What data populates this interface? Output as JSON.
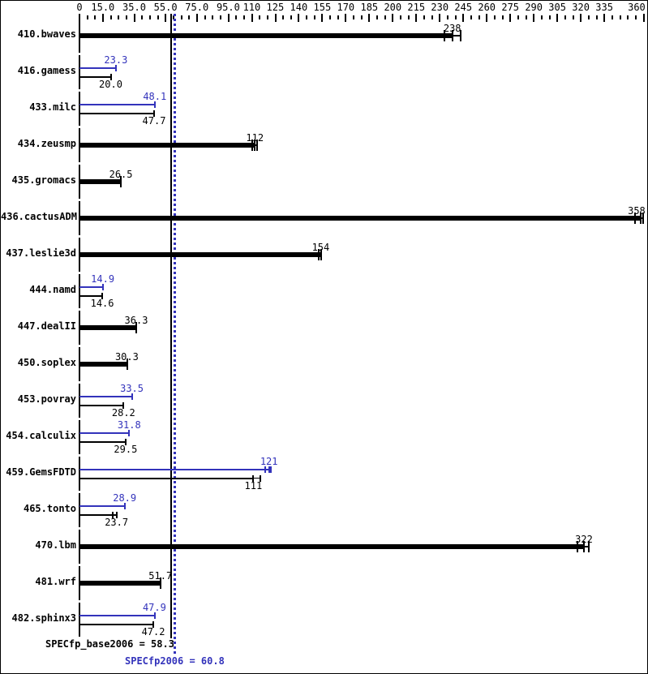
{
  "chart_data": {
    "type": "bar",
    "orientation": "horizontal",
    "axis": {
      "position": "top",
      "min": 0,
      "max": 361,
      "minor_tick_step": 5,
      "major_ticks": [
        {
          "value": 0,
          "label": "0"
        },
        {
          "value": 15,
          "label": "15.0"
        },
        {
          "value": 35,
          "label": "35.0"
        },
        {
          "value": 55,
          "label": "55.0"
        },
        {
          "value": 75,
          "label": "75.0"
        },
        {
          "value": 95,
          "label": "95.0"
        },
        {
          "value": 110,
          "label": "110"
        },
        {
          "value": 125,
          "label": "125"
        },
        {
          "value": 140,
          "label": "140"
        },
        {
          "value": 155,
          "label": "155"
        },
        {
          "value": 170,
          "label": "170"
        },
        {
          "value": 185,
          "label": "185"
        },
        {
          "value": 200,
          "label": "200"
        },
        {
          "value": 215,
          "label": "215"
        },
        {
          "value": 230,
          "label": "230"
        },
        {
          "value": 245,
          "label": "245"
        },
        {
          "value": 260,
          "label": "260"
        },
        {
          "value": 275,
          "label": "275"
        },
        {
          "value": 290,
          "label": "290"
        },
        {
          "value": 305,
          "label": "305"
        },
        {
          "value": 320,
          "label": "320"
        },
        {
          "value": 335,
          "label": "335"
        },
        {
          "value": 360,
          "label": "360"
        }
      ]
    },
    "colors": {
      "base": "#000000",
      "peak": "#3333bb"
    },
    "benchmarks": [
      {
        "name": "410.bwaves",
        "base": {
          "value": 238,
          "label": "238",
          "runs": [
            233,
            238,
            243.5
          ]
        }
      },
      {
        "name": "416.gamess",
        "peak": {
          "value": 23.3,
          "label": "23.3",
          "runs": [
            23.3
          ]
        },
        "base": {
          "value": 20.0,
          "label": "20.0",
          "runs": [
            20.0
          ]
        }
      },
      {
        "name": "433.milc",
        "peak": {
          "value": 48.1,
          "label": "48.1",
          "runs": [
            48.1
          ]
        },
        "base": {
          "value": 47.7,
          "label": "47.7",
          "runs": [
            47.7
          ]
        }
      },
      {
        "name": "434.zeusmp",
        "base": {
          "value": 112,
          "label": "112",
          "runs": [
            110.5,
            112,
            113.5
          ]
        }
      },
      {
        "name": "435.gromacs",
        "base": {
          "value": 26.5,
          "label": "26.5",
          "runs": [
            26.5
          ]
        }
      },
      {
        "name": "436.cactusADM",
        "base": {
          "value": 358,
          "label": "358",
          "runs": [
            354.5,
            358,
            359.5
          ]
        }
      },
      {
        "name": "437.leslie3d",
        "base": {
          "value": 154,
          "label": "154",
          "runs": [
            152.5,
            154
          ]
        }
      },
      {
        "name": "444.namd",
        "peak": {
          "value": 14.9,
          "label": "14.9",
          "runs": [
            14.9
          ]
        },
        "base": {
          "value": 14.6,
          "label": "14.6",
          "runs": [
            14.6
          ]
        }
      },
      {
        "name": "447.dealII",
        "base": {
          "value": 36.3,
          "label": "36.3",
          "runs": [
            36.3
          ]
        }
      },
      {
        "name": "450.soplex",
        "base": {
          "value": 30.3,
          "label": "30.3",
          "runs": [
            30.3
          ]
        }
      },
      {
        "name": "453.povray",
        "peak": {
          "value": 33.5,
          "label": "33.5",
          "runs": [
            33.5
          ]
        },
        "base": {
          "value": 28.2,
          "label": "28.2",
          "runs": [
            28.2
          ]
        }
      },
      {
        "name": "454.calculix",
        "peak": {
          "value": 31.8,
          "label": "31.8",
          "runs": [
            31.8
          ]
        },
        "base": {
          "value": 29.5,
          "label": "29.5",
          "runs": [
            29.5
          ]
        }
      },
      {
        "name": "459.GemsFDTD",
        "peak": {
          "value": 121,
          "label": "121",
          "runs": [
            118.5,
            121,
            122
          ]
        },
        "base": {
          "value": 111,
          "label": "111",
          "runs": [
            111,
            115.5
          ]
        }
      },
      {
        "name": "465.tonto",
        "peak": {
          "value": 28.9,
          "label": "28.9",
          "runs": [
            28.9
          ]
        },
        "base": {
          "value": 23.7,
          "label": "23.7",
          "runs": [
            21.3,
            23.7
          ]
        }
      },
      {
        "name": "470.lbm",
        "base": {
          "value": 322,
          "label": "322",
          "runs": [
            318,
            322,
            325
          ]
        }
      },
      {
        "name": "481.wrf",
        "base": {
          "value": 51.7,
          "label": "51.7",
          "runs": [
            51.7
          ]
        }
      },
      {
        "name": "482.sphinx3",
        "peak": {
          "value": 47.9,
          "label": "47.9",
          "runs": [
            47.9,
            48.3
          ]
        },
        "base": {
          "value": 47.2,
          "label": "47.2",
          "runs": [
            47.2
          ]
        }
      }
    ],
    "summary": {
      "base": {
        "label": "SPECfp_base2006 = 58.3",
        "value": 58.3
      },
      "peak": {
        "label": "SPECfp2006 = 60.8",
        "value": 60.8
      }
    }
  }
}
